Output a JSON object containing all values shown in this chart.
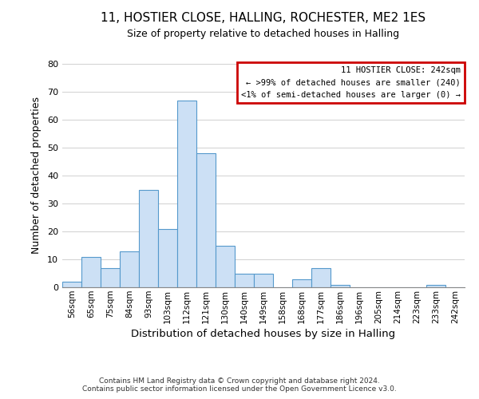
{
  "title": "11, HOSTIER CLOSE, HALLING, ROCHESTER, ME2 1ES",
  "subtitle": "Size of property relative to detached houses in Halling",
  "xlabel": "Distribution of detached houses by size in Halling",
  "ylabel": "Number of detached properties",
  "bar_color": "#cce0f5",
  "bar_edge_color": "#5599cc",
  "categories": [
    "56sqm",
    "65sqm",
    "75sqm",
    "84sqm",
    "93sqm",
    "103sqm",
    "112sqm",
    "121sqm",
    "130sqm",
    "140sqm",
    "149sqm",
    "158sqm",
    "168sqm",
    "177sqm",
    "186sqm",
    "196sqm",
    "205sqm",
    "214sqm",
    "223sqm",
    "233sqm",
    "242sqm"
  ],
  "values": [
    2,
    11,
    7,
    13,
    35,
    21,
    67,
    48,
    15,
    5,
    5,
    0,
    3,
    7,
    1,
    0,
    0,
    0,
    0,
    1,
    0
  ],
  "ylim": [
    0,
    80
  ],
  "yticks": [
    0,
    10,
    20,
    30,
    40,
    50,
    60,
    70,
    80
  ],
  "legend_title": "11 HOSTIER CLOSE: 242sqm",
  "legend_line1": "← >99% of detached houses are smaller (240)",
  "legend_line2": "<1% of semi-detached houses are larger (0) →",
  "legend_box_color": "#ffffff",
  "legend_box_edge_color": "#cc0000",
  "footer_line1": "Contains HM Land Registry data © Crown copyright and database right 2024.",
  "footer_line2": "Contains public sector information licensed under the Open Government Licence v3.0.",
  "background_color": "#ffffff",
  "grid_color": "#d0d0d0"
}
